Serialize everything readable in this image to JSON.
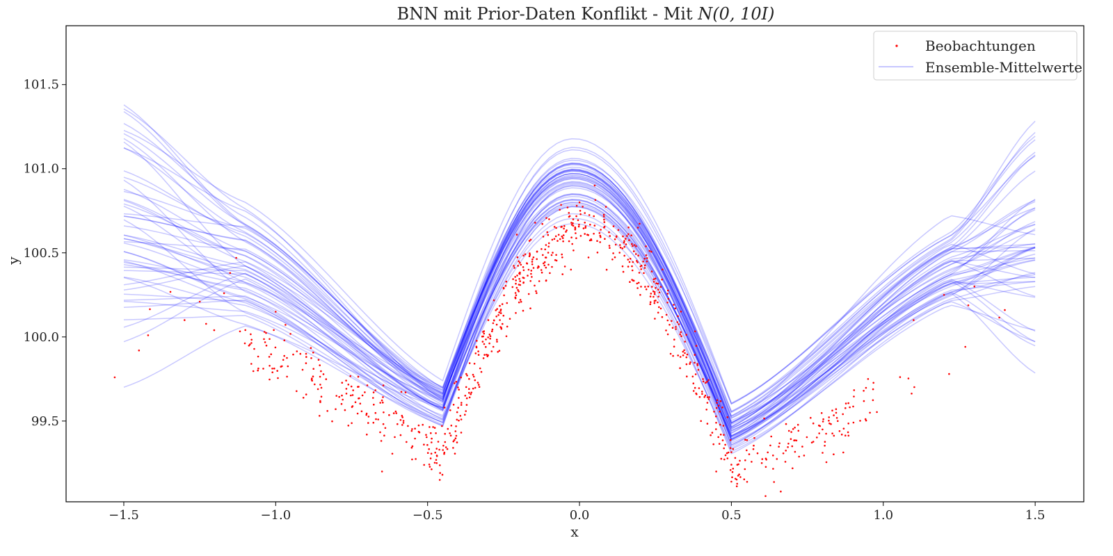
{
  "chart_data": {
    "type": "line",
    "title": "BNN mit Prior-Daten Konflikt - Mit N(0, 10I)",
    "xlabel": "x",
    "ylabel": "y",
    "xlim": [
      -1.69,
      1.66
    ],
    "ylim": [
      99.02,
      101.85
    ],
    "x_ticks": [
      -1.5,
      -1.0,
      -0.5,
      0.0,
      0.5,
      1.0,
      1.5
    ],
    "x_tick_labels": [
      "−1.5",
      "−1.0",
      "−0.5",
      "0.0",
      "0.5",
      "1.0",
      "1.5"
    ],
    "y_ticks": [
      99.5,
      100.0,
      100.5,
      101.0,
      101.5
    ],
    "y_tick_labels": [
      "99.5",
      "100.0",
      "100.5",
      "101.0",
      "101.5"
    ],
    "grid": false,
    "legend": {
      "placement": "top-right",
      "entries": [
        {
          "label": "Beobachtungen",
          "kind": "scatter",
          "color": "#ff0000"
        },
        {
          "label": "Ensemble-Mittelwerte",
          "kind": "line",
          "color": "#0000ff"
        }
      ]
    },
    "colors": {
      "observations": "#ff0000",
      "ensemble": "#0000ff"
    },
    "observations": {
      "x_range": [
        -1.53,
        1.4
      ],
      "count": 850,
      "description_points": [
        [
          -1.53,
          99.76
        ],
        [
          -1.45,
          99.92
        ],
        [
          -1.42,
          100.01
        ],
        [
          -1.3,
          100.1
        ],
        [
          -1.25,
          100.21
        ],
        [
          -1.17,
          100.26
        ],
        [
          -1.15,
          100.38
        ],
        [
          -1.13,
          100.47
        ],
        [
          -1.0,
          100.15
        ],
        [
          -0.9,
          99.9
        ],
        [
          -0.8,
          99.65
        ],
        [
          -0.7,
          99.42
        ],
        [
          -0.65,
          99.2
        ],
        [
          -0.55,
          99.35
        ],
        [
          -0.47,
          99.25
        ],
        [
          -0.46,
          99.15
        ],
        [
          -0.4,
          99.7
        ],
        [
          -0.3,
          100.1
        ],
        [
          -0.2,
          100.45
        ],
        [
          -0.1,
          100.7
        ],
        [
          0.0,
          100.8
        ],
        [
          0.05,
          100.9
        ],
        [
          0.1,
          100.6
        ],
        [
          0.2,
          100.25
        ],
        [
          0.3,
          99.9
        ],
        [
          0.4,
          99.5
        ],
        [
          0.45,
          99.2
        ],
        [
          0.5,
          99.14
        ],
        [
          0.6,
          99.25
        ],
        [
          0.7,
          99.35
        ],
        [
          0.8,
          99.45
        ],
        [
          0.85,
          99.5
        ],
        [
          0.95,
          99.75
        ],
        [
          1.1,
          100.1
        ],
        [
          1.2,
          100.25
        ],
        [
          1.3,
          100.3
        ],
        [
          1.4,
          100.16
        ]
      ]
    },
    "ensemble": {
      "count": 50,
      "knots_x": [
        -1.5,
        -1.1,
        -0.45,
        -0.02,
        0.5,
        1.22,
        1.5
      ],
      "knot_ranges": [
        {
          "x": -1.5,
          "min": 99.53,
          "max": 101.72
        },
        {
          "x": -1.1,
          "min": 99.98,
          "max": 100.85
        },
        {
          "x": -0.45,
          "min": 99.43,
          "max": 99.77
        },
        {
          "x": -0.02,
          "min": 100.63,
          "max": 101.23
        },
        {
          "x": 0.5,
          "min": 99.28,
          "max": 99.62
        },
        {
          "x": 1.22,
          "min": 100.08,
          "max": 100.82
        },
        {
          "x": 1.5,
          "min": 99.75,
          "max": 101.35
        }
      ]
    }
  }
}
